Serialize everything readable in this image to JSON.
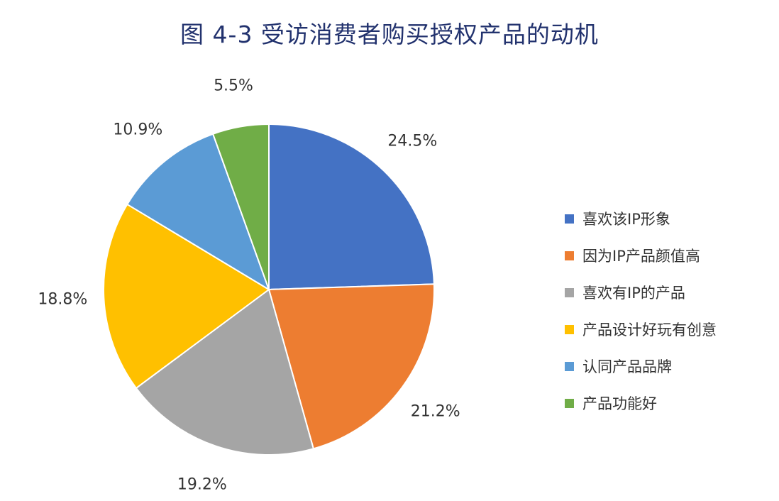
{
  "title": "图 4-3  受访消费者购买授权产品的动机",
  "chart_data": {
    "type": "pie",
    "start": "12 o'clock",
    "direction": "clockwise",
    "legend_position": "right",
    "slices": [
      {
        "label": "喜欢该IP形象",
        "value": 24.5,
        "display": "24.5%",
        "color": "#4472c4"
      },
      {
        "label": "因为IP产品颜值高",
        "value": 21.2,
        "display": "21.2%",
        "color": "#ed7d31"
      },
      {
        "label": "喜欢有IP的产品",
        "value": 19.2,
        "display": "19.2%",
        "color": "#a5a5a5"
      },
      {
        "label": "产品设计好玩有创意",
        "value": 18.8,
        "display": "18.8%",
        "color": "#ffc000"
      },
      {
        "label": "认同产品品牌",
        "value": 10.9,
        "display": "10.9%",
        "color": "#5b9bd5"
      },
      {
        "label": "产品功能好",
        "value": 5.5,
        "display": "5.5%",
        "color": "#70ad47"
      }
    ]
  }
}
